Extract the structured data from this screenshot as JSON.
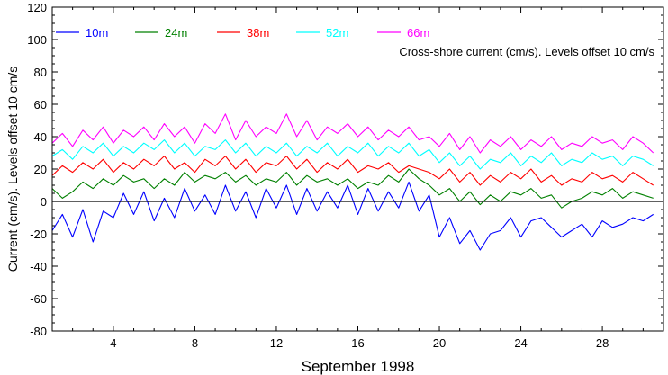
{
  "chart_data": {
    "type": "line",
    "note": "Cross-shore current (cm/s). Levels offset 10 cm/s",
    "xlabel": "September 1998",
    "ylabel": "Current (cm/s). Levels offset 10 cm/s",
    "xlim": [
      1,
      31
    ],
    "ylim": [
      -80,
      120
    ],
    "xticks": [
      4,
      8,
      12,
      16,
      20,
      24,
      28
    ],
    "yticks": [
      -80,
      -60,
      -40,
      -20,
      0,
      20,
      40,
      60,
      80,
      100,
      120
    ],
    "zero_line": true,
    "grid": false,
    "legend_position": "top-left",
    "series": [
      {
        "name": "10m",
        "color": "#0000ff",
        "x": [
          1,
          1.5,
          2,
          2.5,
          3,
          3.5,
          4,
          4.5,
          5,
          5.5,
          6,
          6.5,
          7,
          7.5,
          8,
          8.5,
          9,
          9.5,
          10,
          10.5,
          11,
          11.5,
          12,
          12.5,
          13,
          13.5,
          14,
          14.5,
          15,
          15.5,
          16,
          16.5,
          17,
          17.5,
          18,
          18.5,
          19,
          19.5,
          20,
          20.5,
          21,
          21.5,
          22,
          22.5,
          23,
          23.5,
          24,
          24.5,
          25,
          25.5,
          26,
          26.5,
          27,
          27.5,
          28,
          28.5,
          29,
          29.5,
          30,
          30.5
        ],
        "values": [
          -18,
          -8,
          -22,
          -5,
          -25,
          -6,
          -10,
          5,
          -8,
          6,
          -12,
          2,
          -10,
          8,
          -6,
          4,
          -8,
          10,
          -6,
          6,
          -10,
          8,
          -4,
          10,
          -8,
          8,
          -6,
          6,
          -4,
          10,
          -8,
          8,
          -6,
          6,
          -4,
          12,
          -6,
          4,
          -22,
          -10,
          -26,
          -18,
          -30,
          -20,
          -18,
          -10,
          -22,
          -12,
          -10,
          -16,
          -22,
          -18,
          -14,
          -22,
          -12,
          -16,
          -14,
          -10,
          -12,
          -8
        ]
      },
      {
        "name": "24m",
        "color": "#008000",
        "x": [
          1,
          1.5,
          2,
          2.5,
          3,
          3.5,
          4,
          4.5,
          5,
          5.5,
          6,
          6.5,
          7,
          7.5,
          8,
          8.5,
          9,
          9.5,
          10,
          10.5,
          11,
          11.5,
          12,
          12.5,
          13,
          13.5,
          14,
          14.5,
          15,
          15.5,
          16,
          16.5,
          17,
          17.5,
          18,
          18.5,
          19,
          19.5,
          20,
          20.5,
          21,
          21.5,
          22,
          22.5,
          23,
          23.5,
          24,
          24.5,
          25,
          25.5,
          26,
          26.5,
          27,
          27.5,
          28,
          28.5,
          29,
          29.5,
          30,
          30.5
        ],
        "values": [
          8,
          2,
          6,
          12,
          8,
          14,
          10,
          16,
          12,
          14,
          8,
          14,
          10,
          18,
          12,
          16,
          14,
          18,
          12,
          16,
          10,
          14,
          12,
          18,
          10,
          16,
          12,
          14,
          10,
          14,
          8,
          12,
          10,
          16,
          12,
          20,
          14,
          10,
          4,
          8,
          0,
          6,
          -2,
          4,
          0,
          6,
          4,
          8,
          2,
          4,
          -4,
          0,
          2,
          6,
          4,
          8,
          2,
          6,
          4,
          2
        ]
      },
      {
        "name": "38m",
        "color": "#ff0000",
        "x": [
          1,
          1.5,
          2,
          2.5,
          3,
          3.5,
          4,
          4.5,
          5,
          5.5,
          6,
          6.5,
          7,
          7.5,
          8,
          8.5,
          9,
          9.5,
          10,
          10.5,
          11,
          11.5,
          12,
          12.5,
          13,
          13.5,
          14,
          14.5,
          15,
          15.5,
          16,
          16.5,
          17,
          17.5,
          18,
          18.5,
          19,
          19.5,
          20,
          20.5,
          21,
          21.5,
          22,
          22.5,
          23,
          23.5,
          24,
          24.5,
          25,
          25.5,
          26,
          26.5,
          27,
          27.5,
          28,
          28.5,
          29,
          29.5,
          30,
          30.5
        ],
        "values": [
          16,
          22,
          18,
          24,
          20,
          26,
          18,
          24,
          20,
          26,
          22,
          28,
          20,
          24,
          18,
          26,
          22,
          28,
          20,
          26,
          18,
          24,
          22,
          28,
          20,
          26,
          18,
          24,
          20,
          26,
          18,
          22,
          20,
          24,
          18,
          22,
          20,
          18,
          14,
          20,
          12,
          18,
          10,
          16,
          12,
          18,
          14,
          20,
          12,
          16,
          10,
          14,
          12,
          18,
          14,
          16,
          12,
          18,
          14,
          10
        ]
      },
      {
        "name": "52m",
        "color": "#00ffff",
        "x": [
          1,
          1.5,
          2,
          2.5,
          3,
          3.5,
          4,
          4.5,
          5,
          5.5,
          6,
          6.5,
          7,
          7.5,
          8,
          8.5,
          9,
          9.5,
          10,
          10.5,
          11,
          11.5,
          12,
          12.5,
          13,
          13.5,
          14,
          14.5,
          15,
          15.5,
          16,
          16.5,
          17,
          17.5,
          18,
          18.5,
          19,
          19.5,
          20,
          20.5,
          21,
          21.5,
          22,
          22.5,
          23,
          23.5,
          24,
          24.5,
          25,
          25.5,
          26,
          26.5,
          27,
          27.5,
          28,
          28.5,
          29,
          29.5,
          30,
          30.5
        ],
        "values": [
          28,
          32,
          26,
          34,
          30,
          36,
          28,
          34,
          30,
          36,
          32,
          38,
          30,
          36,
          28,
          34,
          32,
          38,
          30,
          36,
          28,
          34,
          30,
          36,
          28,
          34,
          30,
          36,
          28,
          34,
          30,
          36,
          28,
          34,
          30,
          36,
          28,
          32,
          24,
          30,
          22,
          28,
          20,
          26,
          24,
          30,
          22,
          28,
          24,
          30,
          22,
          26,
          24,
          30,
          26,
          28,
          22,
          28,
          26,
          22
        ]
      },
      {
        "name": "66m",
        "color": "#ff00ff",
        "x": [
          1,
          1.5,
          2,
          2.5,
          3,
          3.5,
          4,
          4.5,
          5,
          5.5,
          6,
          6.5,
          7,
          7.5,
          8,
          8.5,
          9,
          9.5,
          10,
          10.5,
          11,
          11.5,
          12,
          12.5,
          13,
          13.5,
          14,
          14.5,
          15,
          15.5,
          16,
          16.5,
          17,
          17.5,
          18,
          18.5,
          19,
          19.5,
          20,
          20.5,
          21,
          21.5,
          22,
          22.5,
          23,
          23.5,
          24,
          24.5,
          25,
          25.5,
          26,
          26.5,
          27,
          27.5,
          28,
          28.5,
          29,
          29.5,
          30,
          30.5
        ],
        "values": [
          36,
          42,
          34,
          44,
          38,
          46,
          36,
          44,
          40,
          46,
          38,
          48,
          40,
          46,
          36,
          48,
          42,
          54,
          38,
          50,
          40,
          46,
          42,
          54,
          40,
          50,
          38,
          46,
          42,
          48,
          40,
          46,
          38,
          44,
          40,
          46,
          38,
          40,
          34,
          42,
          32,
          40,
          30,
          38,
          34,
          40,
          32,
          38,
          34,
          40,
          32,
          36,
          34,
          40,
          36,
          38,
          32,
          40,
          36,
          30
        ]
      }
    ]
  }
}
